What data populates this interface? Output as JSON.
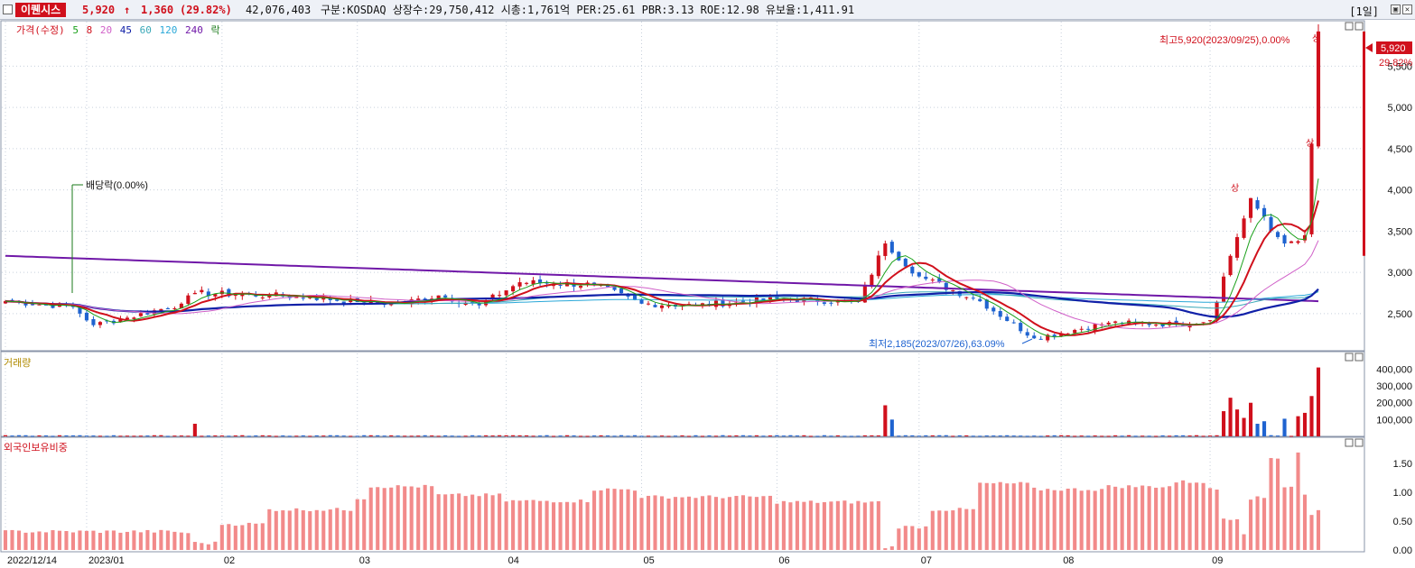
{
  "header": {
    "stock_name": "이퀜시스",
    "price": "5,920",
    "change_arrow": "↑",
    "change": "1,360",
    "change_pct": "(29.82%)",
    "volume": "42,076,403",
    "info": "구분:KOSDAQ 상장수:29,750,412 시총:1,761억 PER:25.61 PBR:3.13 ROE:12.98 유보율:1,411.91",
    "period": "[1일]"
  },
  "legend": {
    "items": [
      {
        "label": "가격(수정)",
        "color": "#d0101c"
      },
      {
        "label": "5",
        "color": "#1aa01a"
      },
      {
        "label": "8",
        "color": "#d0101c"
      },
      {
        "label": "20",
        "color": "#d060c8"
      },
      {
        "label": "45",
        "color": "#1020a8"
      },
      {
        "label": "60",
        "color": "#3aa8b8"
      },
      {
        "label": "120",
        "color": "#2aa8d8"
      },
      {
        "label": "240",
        "color": "#7018a8"
      },
      {
        "label": "락",
        "color": "#1a7a1a"
      }
    ]
  },
  "panels": {
    "volume_title": "거래량",
    "foreign_title": "외국인보유비중"
  },
  "annotations": {
    "high": "최고5,920(2023/09/25),0.00%",
    "high_mark": "상",
    "low": "최저2,185(2023/07/26),63.09%",
    "dividend": "배당락(0.00%)",
    "upper_limit_1": "상",
    "upper_limit_2": "상",
    "last_price": "5,920",
    "last_pct": "29.82%"
  },
  "colors": {
    "up": "#d0101c",
    "down": "#1f63d0",
    "foreign_bar": "#f28a8a"
  },
  "chart_data": [
    {
      "type": "candlestick",
      "title": "",
      "x_tick_labels": [
        "2022/12/14",
        "2023/01",
        "02",
        "03",
        "04",
        "05",
        "06",
        "07",
        "08",
        "09"
      ],
      "x_tick_dates": [
        "2022-12-14",
        "2023-01-02",
        "2023-02-01",
        "2023-03-02",
        "2023-04-03",
        "2023-05-02",
        "2023-06-01",
        "2023-07-03",
        "2023-08-01",
        "2023-09-01"
      ],
      "y_ticks": [
        2500,
        3000,
        3500,
        4000,
        4500,
        5000,
        5500
      ],
      "ylim": [
        2050,
        6050
      ],
      "close_series_approx": [
        [
          "2022-12-14",
          2650
        ],
        [
          "2022-12-28",
          2580
        ],
        [
          "2023-01-03",
          2360
        ],
        [
          "2023-01-10",
          2450
        ],
        [
          "2023-01-20",
          2620
        ],
        [
          "2023-01-26",
          2750
        ],
        [
          "2023-02-10",
          2720
        ],
        [
          "2023-02-20",
          2700
        ],
        [
          "2023-03-02",
          2640
        ],
        [
          "2023-03-10",
          2620
        ],
        [
          "2023-03-20",
          2720
        ],
        [
          "2023-03-28",
          2600
        ],
        [
          "2023-04-05",
          2880
        ],
        [
          "2023-04-20",
          2850
        ],
        [
          "2023-05-02",
          2620
        ],
        [
          "2023-05-15",
          2600
        ],
        [
          "2023-06-01",
          2680
        ],
        [
          "2023-06-20",
          2640
        ],
        [
          "2023-06-26",
          3350
        ],
        [
          "2023-07-03",
          2950
        ],
        [
          "2023-07-14",
          2650
        ],
        [
          "2023-07-26",
          2200
        ],
        [
          "2023-08-10",
          2390
        ],
        [
          "2023-08-25",
          2370
        ],
        [
          "2023-09-01",
          2420
        ],
        [
          "2023-09-06",
          3200
        ],
        [
          "2023-09-11",
          3900
        ],
        [
          "2023-09-14",
          3500
        ],
        [
          "2023-09-18",
          3350
        ],
        [
          "2023-09-21",
          3450
        ],
        [
          "2023-09-22",
          4560
        ],
        [
          "2023-09-25",
          5920
        ]
      ],
      "moving_averages": [
        "5",
        "8",
        "20",
        "45",
        "60",
        "120",
        "240"
      ]
    },
    {
      "type": "bar",
      "title": "",
      "y_ticks": [
        100000,
        200000,
        300000,
        400000
      ],
      "y_tick_labels": [
        "100,000",
        "200,000",
        "300,000",
        "400,000"
      ],
      "ylim": [
        0,
        440000
      ],
      "notable_bars": [
        [
          "2023-01-26",
          75000
        ],
        [
          "2023-06-26",
          185000
        ],
        [
          "2023-06-27",
          100000
        ],
        [
          "2023-09-05",
          150000
        ],
        [
          "2023-09-06",
          230000
        ],
        [
          "2023-09-07",
          160000
        ],
        [
          "2023-09-08",
          110000
        ],
        [
          "2023-09-11",
          200000
        ],
        [
          "2023-09-12",
          75000
        ],
        [
          "2023-09-13",
          90000
        ],
        [
          "2023-09-18",
          105000
        ],
        [
          "2023-09-20",
          120000
        ],
        [
          "2023-09-21",
          140000
        ],
        [
          "2023-09-22",
          240000
        ],
        [
          "2023-09-25",
          410000
        ]
      ]
    },
    {
      "type": "bar",
      "title": "",
      "y_ticks": [
        0,
        0.5,
        1.0,
        1.5
      ],
      "y_tick_labels": [
        "0.00",
        "0.50",
        "1.00",
        "1.50"
      ],
      "ylim": [
        0,
        1.78
      ],
      "segments_approx": [
        [
          "2022-12-14",
          0.32
        ],
        [
          "2023-01-20",
          0.3
        ],
        [
          "2023-01-26",
          0.12
        ],
        [
          "2023-02-01",
          0.45
        ],
        [
          "2023-02-10",
          0.7
        ],
        [
          "2023-03-02",
          0.9
        ],
        [
          "2023-03-06",
          1.1
        ],
        [
          "2023-03-20",
          0.95
        ],
        [
          "2023-04-03",
          0.85
        ],
        [
          "2023-04-20",
          1.05
        ],
        [
          "2023-05-02",
          0.92
        ],
        [
          "2023-06-01",
          0.83
        ],
        [
          "2023-06-26",
          0.05
        ],
        [
          "2023-06-28",
          0.4
        ],
        [
          "2023-07-05",
          0.7
        ],
        [
          "2023-07-14",
          1.15
        ],
        [
          "2023-07-26",
          1.05
        ],
        [
          "2023-08-10",
          1.1
        ],
        [
          "2023-08-25",
          1.18
        ],
        [
          "2023-09-01",
          1.05
        ],
        [
          "2023-09-05",
          0.55
        ],
        [
          "2023-09-08",
          0.3
        ],
        [
          "2023-09-11",
          0.9
        ],
        [
          "2023-09-14",
          1.6
        ],
        [
          "2023-09-18",
          1.1
        ],
        [
          "2023-09-20",
          1.7
        ],
        [
          "2023-09-21",
          0.95
        ],
        [
          "2023-09-22",
          0.6
        ],
        [
          "2023-09-25",
          0.68
        ]
      ]
    }
  ]
}
